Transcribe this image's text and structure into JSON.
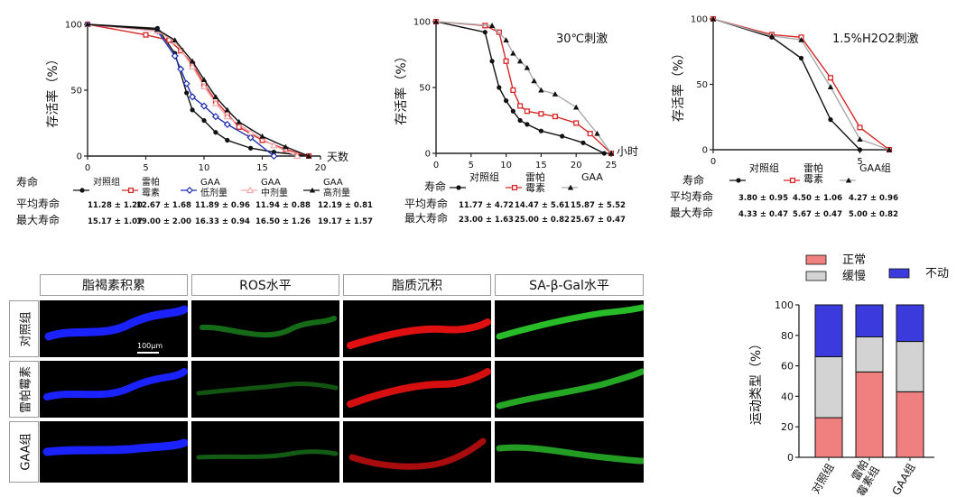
{
  "chart_data": [
    {
      "type": "line",
      "ylabel": "存活率（%）",
      "x_unit": "天数",
      "xlim": [
        0,
        20
      ],
      "ylim": [
        0,
        100
      ],
      "xticks": [
        0,
        5,
        10,
        15,
        20
      ],
      "yticks": [
        0,
        50,
        100
      ],
      "series": [
        {
          "name": "对照组",
          "color": "#111111",
          "marker": "circle",
          "x": [
            0,
            6,
            7.5,
            8.5,
            9,
            10,
            11,
            12,
            14,
            16,
            19
          ],
          "y": [
            100,
            97,
            78,
            48,
            35,
            27,
            18,
            12,
            6,
            3,
            0
          ]
        },
        {
          "name": "雷帕霉素",
          "color": "#d62728",
          "marker": "square",
          "x": [
            0,
            5,
            7,
            8,
            9,
            10,
            11,
            12,
            13,
            15,
            17,
            19
          ],
          "y": [
            100,
            92,
            88,
            80,
            70,
            55,
            42,
            32,
            22,
            12,
            5,
            0
          ]
        },
        {
          "name": "GAA低剂量",
          "color": "#1f2fae",
          "marker": "diamond",
          "x": [
            0,
            6,
            7.5,
            8,
            8.5,
            9,
            10,
            11,
            12,
            14,
            16
          ],
          "y": [
            100,
            95,
            76,
            66,
            55,
            45,
            38,
            30,
            24,
            14,
            0
          ]
        },
        {
          "name": "GAA中剂量",
          "color": "#f4a6a6",
          "marker": "triangle-open",
          "x": [
            0,
            6,
            7.5,
            9,
            10,
            11,
            12,
            14,
            16,
            18
          ],
          "y": [
            100,
            95,
            87,
            68,
            53,
            40,
            30,
            18,
            8,
            0
          ]
        },
        {
          "name": "GAA高剂量",
          "color": "#111111",
          "marker": "triangle",
          "x": [
            0,
            6,
            7.5,
            9,
            10,
            11,
            12,
            13,
            15,
            17,
            19
          ],
          "y": [
            100,
            96,
            88,
            72,
            58,
            45,
            35,
            26,
            15,
            7,
            0
          ]
        }
      ],
      "table": {
        "row_labels": [
          "寿命",
          "平均寿命",
          "最大寿命"
        ],
        "groups": [
          "对照组",
          "雷帕霉素",
          "GAA低剂量",
          "GAA中剂量",
          "GAA高剂量"
        ],
        "mean": [
          "11.28 ± 1.20",
          "12.67 ± 1.68",
          "11.89 ± 0.96",
          "11.94 ± 0.88",
          "12.19 ± 0.81"
        ],
        "max": [
          "15.17 ± 1.07",
          "19.00 ± 2.00",
          "16.33 ± 0.94",
          "16.50 ± 1.26",
          "19.17 ± 1.57"
        ]
      }
    },
    {
      "type": "line",
      "title": "30℃刺激",
      "ylabel": "存活率（%）",
      "x_unit": "小时",
      "xlim": [
        0,
        25
      ],
      "ylim": [
        0,
        100
      ],
      "xticks": [
        0,
        5,
        10,
        15,
        20,
        25
      ],
      "yticks": [
        0,
        50,
        100
      ],
      "series": [
        {
          "name": "对照组",
          "color": "#111111",
          "marker": "circle",
          "x": [
            0,
            7,
            8,
            9,
            10,
            11,
            12,
            13,
            15,
            18,
            21,
            24
          ],
          "y": [
            100,
            92,
            70,
            50,
            40,
            32,
            25,
            22,
            17,
            13,
            8,
            0
          ]
        },
        {
          "name": "雷帕霉素",
          "color": "#d62728",
          "marker": "square",
          "x": [
            0,
            7,
            9,
            10,
            11,
            12,
            13,
            15,
            17,
            20,
            22,
            25
          ],
          "y": [
            100,
            97,
            92,
            70,
            48,
            36,
            32,
            30,
            28,
            23,
            15,
            0
          ]
        },
        {
          "name": "GAA",
          "color": "#111111",
          "marker": "triangle",
          "line_color": "#aaaaaa",
          "x": [
            0,
            8,
            10,
            11,
            12,
            13,
            14,
            15,
            17,
            20,
            23,
            25
          ],
          "y": [
            100,
            97,
            86,
            76,
            70,
            65,
            55,
            48,
            45,
            35,
            15,
            0
          ]
        }
      ],
      "table": {
        "row_labels": [
          "寿命",
          "平均寿命",
          "最大寿命"
        ],
        "groups": [
          "对照组",
          "雷帕霉素",
          "GAA"
        ],
        "mean": [
          "11.77 ± 4.72",
          "14.47 ± 5.61",
          "15.87 ± 5.52"
        ],
        "max": [
          "23.00 ± 1.63",
          "25.00 ± 0.82",
          "25.67 ± 0.47"
        ]
      }
    },
    {
      "type": "line",
      "title": "1.5%H2O2刺激",
      "ylabel": "存活率（%）",
      "xlim": [
        0,
        6
      ],
      "ylim": [
        0,
        100
      ],
      "xticks": [
        0,
        5
      ],
      "yticks": [
        0,
        50,
        100
      ],
      "series": [
        {
          "name": "对照组",
          "color": "#111111",
          "marker": "circle",
          "x": [
            0,
            2,
            3,
            4,
            5
          ],
          "y": [
            100,
            86,
            70,
            23,
            0
          ]
        },
        {
          "name": "雷帕霉素",
          "color": "#d62728",
          "marker": "square",
          "x": [
            0,
            2,
            3,
            4,
            5,
            6
          ],
          "y": [
            100,
            88,
            86,
            55,
            17,
            0
          ]
        },
        {
          "name": "GAA组",
          "color": "#111111",
          "marker": "triangle",
          "line_color": "#aaaaaa",
          "x": [
            0,
            2,
            3,
            4,
            5,
            6
          ],
          "y": [
            100,
            87,
            84,
            48,
            8,
            0
          ]
        }
      ],
      "table": {
        "row_labels": [
          "寿命",
          "平均寿命",
          "最大寿命"
        ],
        "groups": [
          "对照组",
          "雷帕霉素",
          "GAA组"
        ],
        "mean": [
          "3.80 ± 0.95",
          "4.50 ± 1.06",
          "4.27 ± 0.96"
        ],
        "max": [
          "4.33 ± 0.47",
          "5.67 ± 0.47",
          "5.00 ± 0.82"
        ]
      }
    },
    {
      "type": "stacked-bar",
      "ylabel": "运动类型（%）",
      "ylim": [
        0,
        100
      ],
      "yticks": [
        0,
        20,
        40,
        60,
        80,
        100
      ],
      "categories": [
        "对照组",
        "雷帕霉素组",
        "GAA组"
      ],
      "series": [
        {
          "name": "正常",
          "color": "#f08080",
          "values": [
            26,
            56,
            43
          ]
        },
        {
          "name": "缓慢",
          "color": "#d3d3d3",
          "values": [
            40,
            23,
            33
          ]
        },
        {
          "name": "不动",
          "color": "#3b3bdd",
          "values": [
            34,
            21,
            24
          ]
        }
      ]
    }
  ],
  "micrographs": {
    "columns": [
      "脂褐素积累",
      "ROS水平",
      "脂质沉积",
      "SA-β-Gal水平"
    ],
    "rows": [
      "对照组",
      "雷帕霉素",
      "GAA组"
    ],
    "scale_bar": "100μm",
    "colors": {
      "lipofuscin": "#1a22ff",
      "ros": "#1f9a1f",
      "lipid": "#e01010",
      "sagal": "#2ed02e"
    }
  },
  "labels": {
    "p1_legend": [
      "对照组",
      "雷帕\n霉素",
      "GAA\n低剂量",
      "GAA\n中剂量",
      "GAA\n高剂量"
    ],
    "p2_legend": [
      "对照组",
      "雷帕\n霉素",
      "GAA"
    ],
    "p3_legend": [
      "对照组",
      "雷帕\n霉素",
      "GAA组"
    ]
  }
}
